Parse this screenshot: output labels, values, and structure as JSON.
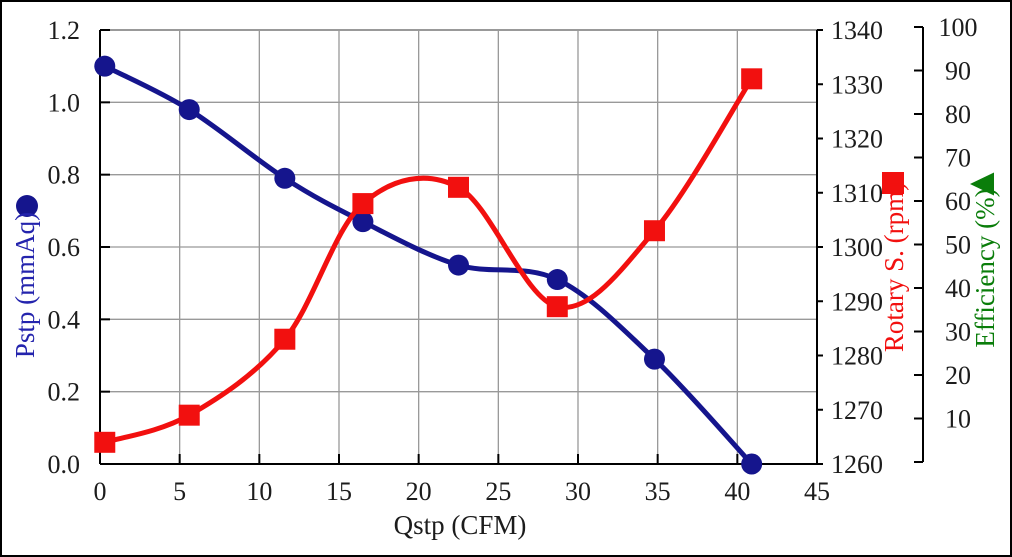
{
  "chart_data": {
    "type": "line",
    "title": "",
    "x_axis": {
      "label": "Qstp (CFM)",
      "min": 0,
      "max": 45,
      "tick_labels": [
        "0",
        "5",
        "10",
        "15",
        "20",
        "25",
        "30",
        "35",
        "40",
        "45"
      ]
    },
    "y_axis_left": {
      "label": "Pstp (mmAq)",
      "min": 0,
      "max": 1.2,
      "tick_labels": [
        "0.0",
        "0.2",
        "0.4",
        "0.6",
        "0.8",
        "1.0",
        "1.2"
      ],
      "color": "#15158d"
    },
    "y_axis_rpm": {
      "label": "Rotary S. (rpm)",
      "min": 1260,
      "max": 1340,
      "tick_labels": [
        "1260",
        "1270",
        "1280",
        "1290",
        "1300",
        "1310",
        "1320",
        "1330",
        "1340"
      ],
      "color": "#f2100f"
    },
    "y_axis_eff": {
      "label": "Efficiency (%)",
      "min": 0,
      "max": 100,
      "tick_labels": [
        "10",
        "20",
        "30",
        "40",
        "50",
        "60",
        "70",
        "80",
        "90",
        "100"
      ],
      "color": "#0a7d0a"
    },
    "grid": true,
    "grid_color": "#999999",
    "tick_label_color": "#1c1c1c",
    "legend_position": "axis-titles",
    "series": [
      {
        "name": "Pstp",
        "axis": "left",
        "marker": "circle",
        "color": "#15158d",
        "x": [
          0.3,
          5.6,
          11.6,
          16.5,
          22.5,
          28.7,
          34.8,
          40.9
        ],
        "y": [
          1.1,
          0.98,
          0.79,
          0.67,
          0.55,
          0.51,
          0.29,
          0.0
        ]
      },
      {
        "name": "Rotary S.",
        "axis": "rpm",
        "marker": "square",
        "color": "#f2100f",
        "x": [
          0.3,
          5.6,
          11.6,
          16.5,
          22.5,
          28.7,
          34.8,
          40.9
        ],
        "y": [
          1264,
          1269,
          1283,
          1308,
          1311,
          1289,
          1303,
          1331
        ]
      },
      {
        "name": "Efficiency",
        "axis": "eff",
        "marker": "triangle-left",
        "color": "#0a7d0a",
        "x": [],
        "y": []
      }
    ]
  }
}
